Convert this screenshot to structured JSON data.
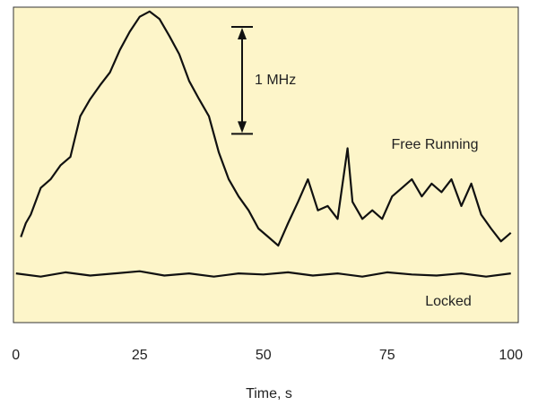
{
  "chart_data": {
    "type": "line",
    "xlabel": "Time, s",
    "xlim": [
      -0.5,
      101.5
    ],
    "xticks": [
      0,
      25,
      50,
      75,
      100
    ],
    "ylim": [
      -0.45,
      2.5
    ],
    "background": "#fdf5c9",
    "series": [
      {
        "name": "Free Running",
        "color": "#111111",
        "x": [
          1,
          2,
          3,
          5,
          7,
          9,
          11,
          13,
          15,
          17,
          19,
          21,
          23,
          25,
          27,
          29,
          31,
          33,
          35,
          37,
          39,
          41,
          43,
          45,
          47,
          49,
          51,
          53,
          55,
          57,
          59,
          61,
          63,
          65,
          67,
          68,
          70,
          72,
          74,
          76,
          78,
          80,
          82,
          84,
          86,
          88,
          90,
          92,
          94,
          96,
          98,
          100
        ],
        "values": [
          0.35,
          0.48,
          0.56,
          0.81,
          0.89,
          1.02,
          1.1,
          1.48,
          1.64,
          1.77,
          1.89,
          2.1,
          2.27,
          2.41,
          2.46,
          2.39,
          2.23,
          2.06,
          1.81,
          1.64,
          1.48,
          1.14,
          0.89,
          0.73,
          0.6,
          0.43,
          0.35,
          0.27,
          0.48,
          0.68,
          0.89,
          0.6,
          0.64,
          0.52,
          1.18,
          0.68,
          0.52,
          0.6,
          0.52,
          0.73,
          0.81,
          0.89,
          0.73,
          0.85,
          0.77,
          0.89,
          0.64,
          0.85,
          0.56,
          0.43,
          0.31,
          0.39
        ]
      },
      {
        "name": "Locked",
        "color": "#111111",
        "x": [
          0,
          5,
          10,
          15,
          20,
          25,
          30,
          35,
          40,
          45,
          50,
          55,
          60,
          65,
          70,
          75,
          80,
          85,
          90,
          95,
          100
        ],
        "values": [
          0.01,
          -0.02,
          0.02,
          -0.01,
          0.01,
          0.03,
          -0.01,
          0.01,
          -0.02,
          0.01,
          0.0,
          0.02,
          -0.01,
          0.01,
          -0.02,
          0.02,
          0.0,
          -0.01,
          0.01,
          -0.02,
          0.01
        ]
      }
    ],
    "scale_bar": {
      "label": "1 MHz",
      "value": 1
    }
  }
}
